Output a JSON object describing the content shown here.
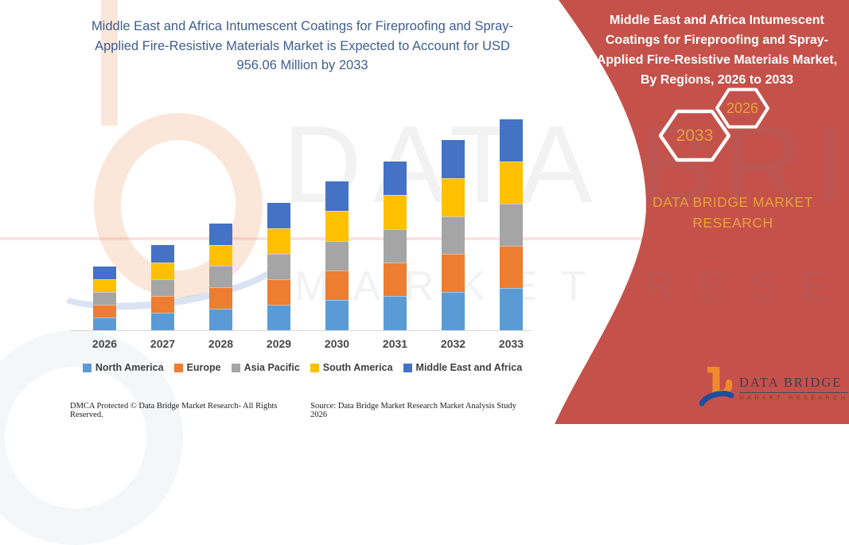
{
  "main": {
    "title": "Middle East and Africa Intumescent Coatings for Fireproofing and Spray-Applied Fire-Resistive Materials Market is Expected to Account for USD 956.06 Million by 2033",
    "footer_left": "DMCA Protected © Data Bridge Market Research-  All Rights Reserved.",
    "footer_right": "Source: Data Bridge Market Research  Market Analysis Study 2026"
  },
  "panel": {
    "title": "Middle East and Africa Intumescent Coatings for Fireproofing and Spray-Applied Fire-Resistive Materials Market, By Regions, 2026 to 2033",
    "badge_end_year": "2033",
    "badge_start_year": "2026",
    "brand_text": "DATA BRIDGE MARKET RESEARCH",
    "bg_color": "#c5514b",
    "accent_gold": "#e6a33c"
  },
  "logo": {
    "name": "DATA BRIDGE",
    "subtitle": "MARKET RESEARCH"
  },
  "watermark": {
    "line1": "DATA BRIDGE",
    "line2": "MARKET RESEARCH"
  },
  "chart_data": {
    "type": "bar",
    "stacked": true,
    "title": "Middle East and Africa Intumescent Coatings for Fireproofing and Spray-Applied Fire-Resistive Materials Market, By Regions, 2026 to 2033",
    "unit": "USD Million",
    "categories": [
      "2026",
      "2027",
      "2028",
      "2029",
      "2030",
      "2031",
      "2032",
      "2033"
    ],
    "series": [
      {
        "name": "North America",
        "color": "#5b9bd5",
        "values": [
          58,
          78,
          97,
          116,
          136,
          154,
          173,
          192
        ]
      },
      {
        "name": "Europe",
        "color": "#ed7d31",
        "values": [
          58,
          77,
          97,
          115,
          135,
          153,
          172,
          191
        ]
      },
      {
        "name": "Asia Pacific",
        "color": "#a5a5a5",
        "values": [
          58,
          77,
          97,
          116,
          135,
          153,
          172,
          191
        ]
      },
      {
        "name": "South America",
        "color": "#ffc000",
        "values": [
          58,
          77,
          96,
          115,
          134,
          152,
          172,
          191
        ]
      },
      {
        "name": "Middle East and Africa",
        "color": "#4472c4",
        "values": [
          57,
          77,
          96,
          115,
          135,
          153,
          173,
          191.06
        ]
      }
    ],
    "totals": [
      289,
      386,
      483,
      577,
      675,
      765,
      862,
      956.06
    ],
    "ylim": [
      0,
      1000
    ],
    "y_axis_visible": false,
    "gridlines": false,
    "legend_position": "bottom"
  }
}
